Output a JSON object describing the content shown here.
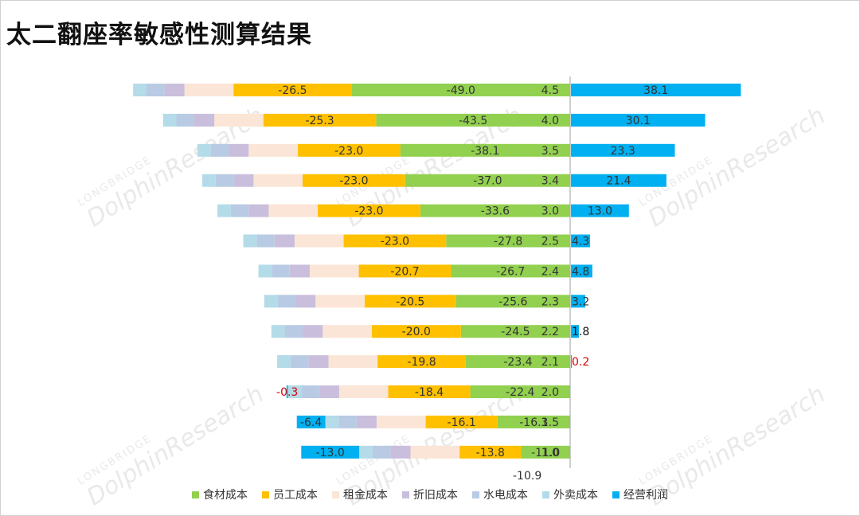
{
  "title": "太二翻座率敏感性测算结果",
  "watermark": {
    "brand": "LONGBRIDGE",
    "name": "DolphinResearch"
  },
  "colors": {
    "food": "#92d050",
    "staff": "#ffc000",
    "rent": "#fbe5d6",
    "depreciation": "#c9bfdc",
    "utility": "#b9cbe4",
    "delivery": "#b4dbe8",
    "profit": "#00b0f0"
  },
  "chart_data": {
    "type": "bar",
    "orientation": "horizontal-stacked",
    "xlim": [
      -130,
      50
    ],
    "legend_position": "bottom",
    "grid": false,
    "series": [
      {
        "key": "food",
        "name": "食材成本"
      },
      {
        "key": "staff",
        "name": "员工成本"
      },
      {
        "key": "rent",
        "name": "租金成本"
      },
      {
        "key": "depreciation",
        "name": "折旧成本"
      },
      {
        "key": "utility",
        "name": "水电成本"
      },
      {
        "key": "delivery",
        "name": "外卖成本"
      },
      {
        "key": "profit",
        "name": "经营利润"
      }
    ],
    "rows": [
      {
        "category": "4.5",
        "food": -49.0,
        "staff": -26.5,
        "rent": -11.0,
        "depreciation": -4.5,
        "utility": -4.0,
        "delivery": -3.0,
        "profit": 38.1
      },
      {
        "category": "4.0",
        "food": -43.5,
        "staff": -25.3,
        "rent": -11.0,
        "depreciation": -4.5,
        "utility": -4.0,
        "delivery": -3.0,
        "profit": 30.1
      },
      {
        "category": "3.5",
        "food": -38.1,
        "staff": -23.0,
        "rent": -11.0,
        "depreciation": -4.5,
        "utility": -4.0,
        "delivery": -3.0,
        "profit": 23.3
      },
      {
        "category": "3.4",
        "food": -37.0,
        "staff": -23.0,
        "rent": -11.0,
        "depreciation": -4.5,
        "utility": -4.0,
        "delivery": -3.0,
        "profit": 21.4
      },
      {
        "category": "3.0",
        "food": -33.6,
        "staff": -23.0,
        "rent": -11.0,
        "depreciation": -4.5,
        "utility": -4.0,
        "delivery": -3.0,
        "profit": 13.0
      },
      {
        "category": "2.5",
        "food": -27.8,
        "staff": -23.0,
        "rent": -11.0,
        "depreciation": -4.5,
        "utility": -4.0,
        "delivery": -3.0,
        "profit": 4.3
      },
      {
        "category": "2.4",
        "food": -26.7,
        "staff": -20.7,
        "rent": -11.0,
        "depreciation": -4.5,
        "utility": -4.0,
        "delivery": -3.0,
        "profit": 4.8
      },
      {
        "category": "2.3",
        "food": -25.6,
        "staff": -20.5,
        "rent": -11.0,
        "depreciation": -4.5,
        "utility": -4.0,
        "delivery": -3.0,
        "profit": 3.2
      },
      {
        "category": "2.2",
        "food": -24.5,
        "staff": -20.0,
        "rent": -11.0,
        "depreciation": -4.5,
        "utility": -4.0,
        "delivery": -3.0,
        "profit": 1.8
      },
      {
        "category": "2.1",
        "food": -23.4,
        "staff": -19.8,
        "rent": -11.0,
        "depreciation": -4.5,
        "utility": -4.0,
        "delivery": -3.0,
        "profit": 0.2
      },
      {
        "category": "2.0",
        "food": -22.4,
        "staff": -18.4,
        "rent": -11.0,
        "depreciation": -4.5,
        "utility": -4.0,
        "delivery": -3.0,
        "profit": -0.3
      },
      {
        "category": "1.5",
        "food": -16.3,
        "staff": -16.1,
        "rent": -11.0,
        "depreciation": -4.5,
        "utility": -4.0,
        "delivery": -3.0,
        "profit": -6.4
      },
      {
        "category": "1.0",
        "food": -11.0,
        "staff": -13.8,
        "rent": -11.0,
        "depreciation": -4.5,
        "utility": -4.0,
        "delivery": -3.0,
        "profit": -13.0
      }
    ],
    "extra_label": "-10.9",
    "profit_label_colors": [
      "#333333",
      "#333333",
      "#333333",
      "#333333",
      "#333333",
      "#333333",
      "#333333",
      "#333333",
      "#111111",
      "#e00000",
      "#e00000",
      "#333333",
      "#333333"
    ]
  }
}
